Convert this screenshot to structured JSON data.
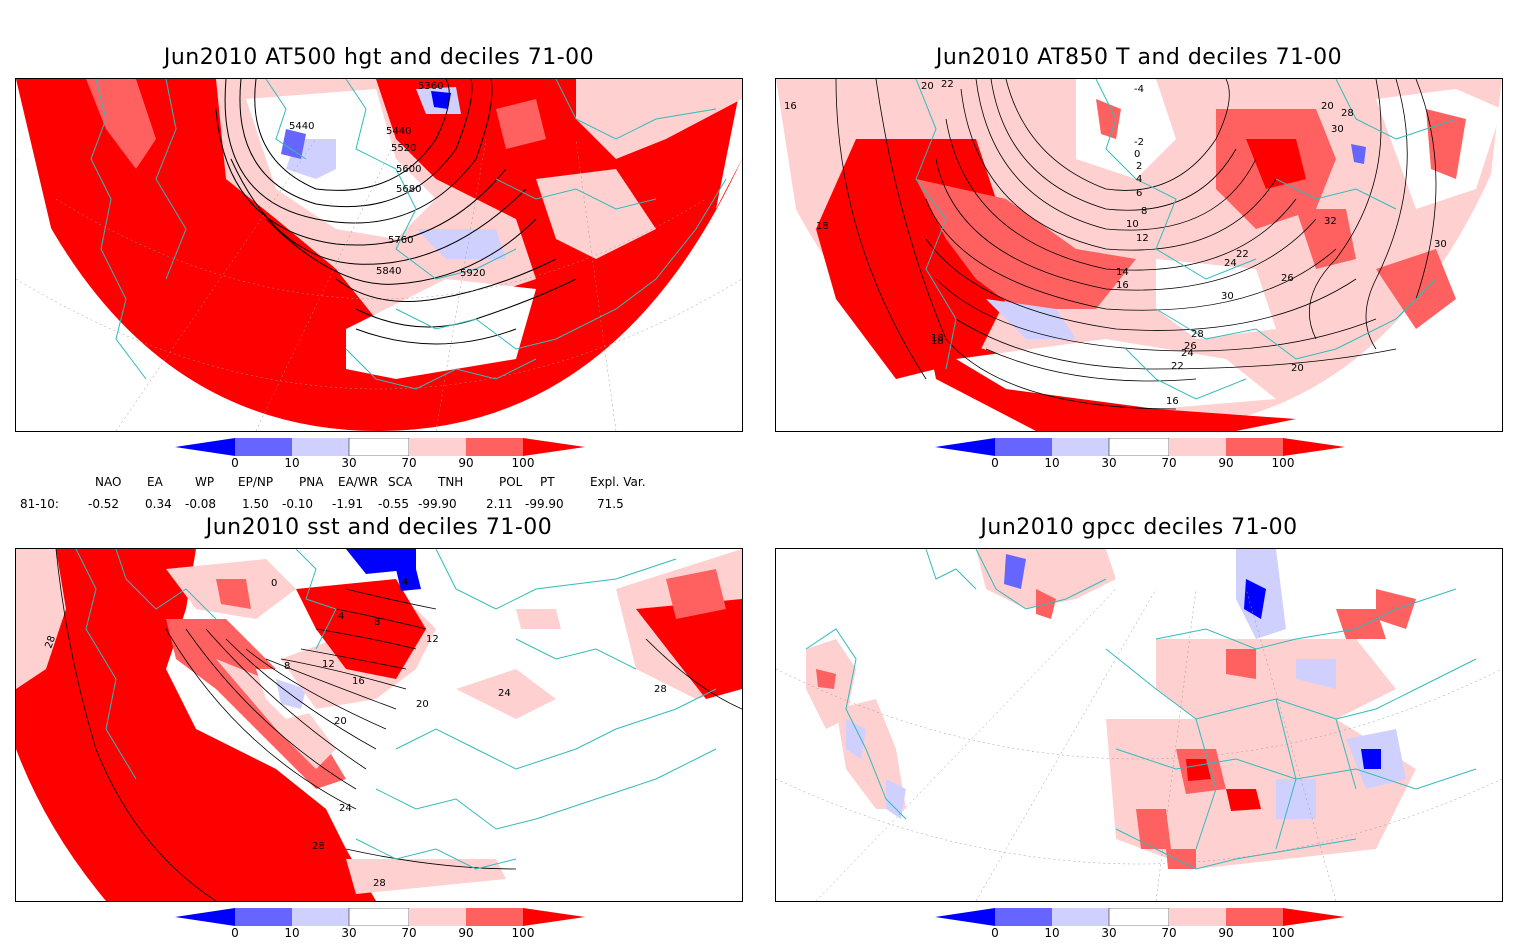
{
  "panels": [
    {
      "title": "Jun2010 AT500 hgt and deciles 71-00",
      "labels": [
        "5360",
        "5440",
        "5440",
        "5520",
        "5600",
        "5680",
        "5760",
        "5840",
        "5920"
      ]
    },
    {
      "title": "Jun2010 AT850 T and deciles 71-00",
      "labels": [
        "16",
        "18",
        "18",
        "20",
        "22",
        "-4",
        "-2",
        "0",
        "2",
        "4",
        "6",
        "8",
        "10",
        "12",
        "14",
        "16",
        "20",
        "22",
        "24",
        "26",
        "28",
        "30",
        "30",
        "32",
        "16",
        "18",
        "20",
        "22",
        "24",
        "26",
        "28",
        "30"
      ]
    },
    {
      "title": "Jun2010 sst and deciles 71-00",
      "labels": [
        "28",
        "0",
        "4",
        "8",
        "12",
        "16",
        "20",
        "20",
        "24",
        "24",
        "28",
        "28",
        "28",
        "12",
        "8",
        "4"
      ]
    },
    {
      "title": "Jun2010 gpcc deciles 71-00",
      "labels": []
    }
  ],
  "colorbar": {
    "ticks": [
      "0",
      "10",
      "30",
      "70",
      "90",
      "100"
    ],
    "colors": {
      "deep_blue": "#0000ff",
      "mid_blue": "#6666ff",
      "light_blue": "#d0d0ff",
      "white": "#ffffff",
      "light_red": "#ffd0d0",
      "mid_red": "#ff6060",
      "deep_red": "#ff0000"
    }
  },
  "indices": {
    "headers": [
      "NAO",
      "EA",
      "WP",
      "EP/NP",
      "PNA",
      "EA/WR",
      "SCA",
      "TNH",
      "POL",
      "PT",
      "Expl. Var."
    ],
    "row_label": "81-10:",
    "values": [
      "-0.52",
      "0.34",
      "-0.08",
      "1.50",
      "-0.10",
      "-1.91",
      "-0.55",
      "-99.90",
      "2.11",
      "-99.90",
      "71.5"
    ]
  }
}
